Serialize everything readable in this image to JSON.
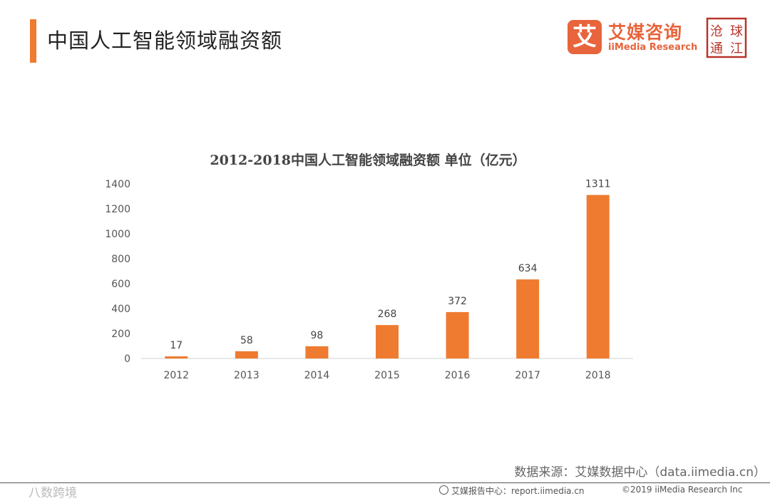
{
  "header": {
    "title": "中国人工智能领域融资额",
    "accent_color": "#ee7b30"
  },
  "logo": {
    "mark_char": "艾",
    "cn": "艾媒咨询",
    "en": "iiMedia Research",
    "color": "#e8643c"
  },
  "seal": {
    "chars": [
      "沧",
      "球",
      "通",
      "江"
    ],
    "color": "#b8342a"
  },
  "chart_data": {
    "type": "bar",
    "title": "2012-2018中国人工智能领域融资额 单位（亿元）",
    "categories": [
      "2012",
      "2013",
      "2014",
      "2015",
      "2016",
      "2017",
      "2018"
    ],
    "values": [
      17,
      58,
      98,
      268,
      372,
      634,
      1311
    ],
    "ylim": [
      0,
      1400
    ],
    "yticks": [
      "0",
      "200",
      "400",
      "600",
      "800",
      "1000",
      "1200",
      "1400"
    ],
    "bar_color": "#ee7b30",
    "grid": false,
    "legend": "none"
  },
  "footer": {
    "source": "数据来源：艾媒数据中心（data.iimedia.cn）",
    "watermark": "八数跨境",
    "report": "艾媒报告中心：report.iimedia.cn",
    "copyright": "©2019  iiMedia Research Inc"
  }
}
